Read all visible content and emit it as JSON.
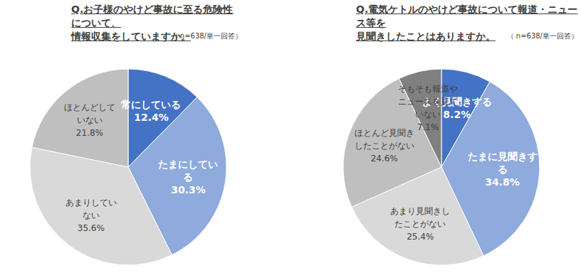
{
  "chart_data": [
    {
      "type": "pie",
      "title": "Q.お子様のやけど事故に至る危険性について、\n情報収集をしていますか。",
      "subtitle": "（ n=638/単一回答）",
      "categories": [
        "常にしている",
        "たまにしている",
        "あまりしていない",
        "ほとんどしていない"
      ],
      "values": [
        12.4,
        30.3,
        35.6,
        21.8
      ],
      "value_labels": [
        "12.4%",
        "30.3%",
        "35.6%",
        "21.8%"
      ],
      "colors": [
        "#4472c4",
        "#8faadc",
        "#d9d9d9",
        "#bfbfbf"
      ],
      "data_labels": true
    },
    {
      "type": "pie",
      "title": "Q.電気ケトルのやけど事故について報道・ニュース等を\n見聞きしたことはありますか。",
      "subtitle": "（ n=638/単一回答）",
      "categories": [
        "よく見聞きする",
        "たまに見聞きする",
        "あまり見聞きしたことがない",
        "ほとんど見聞きしたことがない",
        "そもそも報道やニュースを見ていない"
      ],
      "values": [
        8.2,
        34.8,
        25.4,
        24.6,
        7.1
      ],
      "value_labels": [
        "8.2%",
        "34.8%",
        "25.4%",
        "24.6%",
        "7.1%"
      ],
      "colors": [
        "#4472c4",
        "#8faadc",
        "#d9d9d9",
        "#bfbfbf",
        "#808080"
      ],
      "data_labels": true
    }
  ]
}
